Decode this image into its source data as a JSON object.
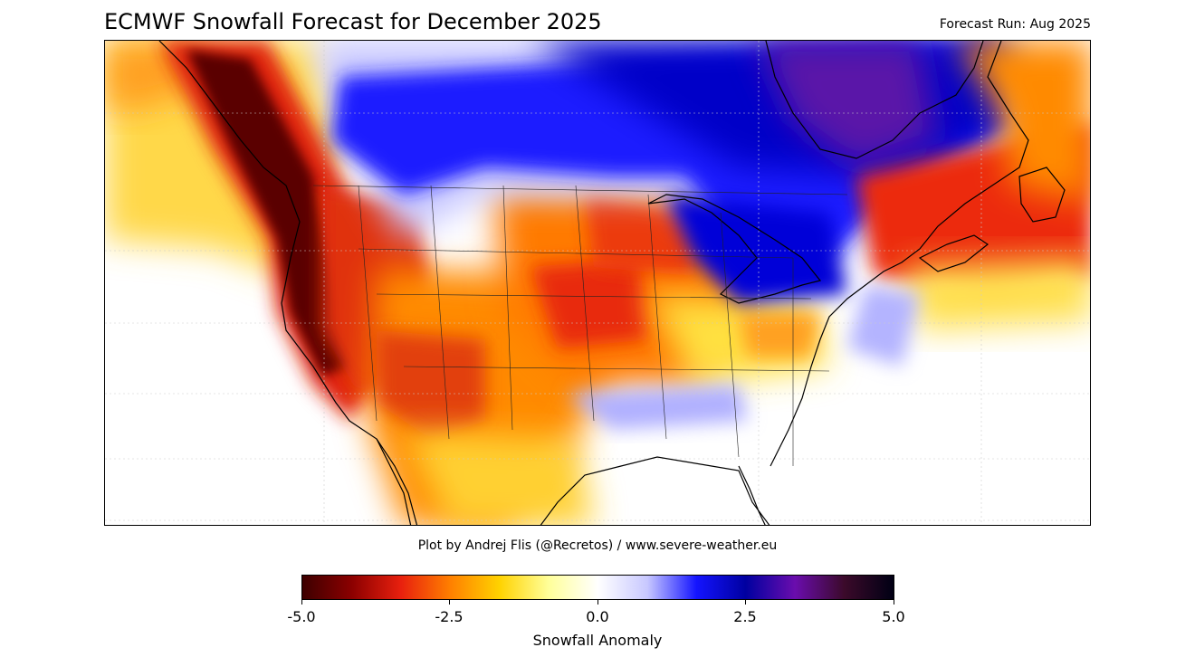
{
  "header": {
    "title": "ECMWF Snowfall Forecast for December 2025",
    "forecast_run": "Forecast Run: Aug 2025"
  },
  "footer": {
    "credit": "Plot by Andrej Flis (@Recretos) / www.severe-weather.eu"
  },
  "colorbar": {
    "label": "Snowfall Anomaly",
    "min": -5.0,
    "max": 5.0,
    "ticks": [
      "-5.0",
      "-2.5",
      "0.0",
      "2.5",
      "5.0"
    ],
    "colors": [
      "#3d0000",
      "#8b0000",
      "#e8200e",
      "#ff7f00",
      "#ffd200",
      "#ffff9a",
      "#ffffff",
      "#c8c8ff",
      "#1414ff",
      "#0000a0",
      "#6a0dad",
      "#3b0a2a",
      "#000014"
    ]
  },
  "map": {
    "region": "North America (CONUS and southern Canada)",
    "colors": {
      "strong_negative": "#5a0000",
      "negative": "#d7260f",
      "mild_negative": "#ff9a00",
      "slight_negative": "#ffe54a",
      "neutral": "#ffffff",
      "slight_positive": "#b4b4ff",
      "positive": "#1a1aff",
      "strong_positive": "#0000c8",
      "extreme_positive": "#5a12a8"
    }
  }
}
